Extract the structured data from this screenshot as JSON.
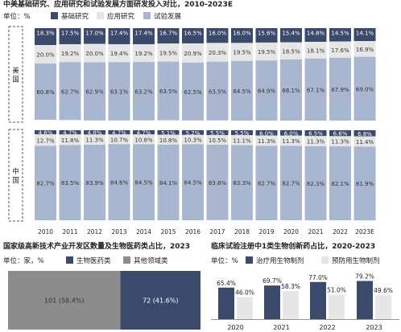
{
  "top_chart": {
    "title": "中美基础研究、应用研究和试验发展方面研发投入对比，2010-2023E",
    "unit": "单位：%",
    "legend": [
      "基础研究",
      "应用研究",
      "试验发展"
    ],
    "colors": {
      "basic": "#3b4a6b",
      "applied": "#e6e6e6",
      "experimental": "#a8b6cf"
    }
  },
  "bottom_left": {
    "title": "国家级高新技术产业开发区数量及生物医药类占比，2023",
    "unit": "单位：家，%",
    "legend": [
      "生物医药类",
      "其他领域类"
    ]
  },
  "bottom_right": {
    "title": "临床试验注册中1类生物创新药占比，2020-2023",
    "unit": "单位：%",
    "legend": [
      "治疗用生物制剂",
      "预防用生物制剂"
    ]
  },
  "chart_data": [
    {
      "type": "bar",
      "title": "中美基础研究、应用研究和试验发展方面研发投入对比，2010-2023E",
      "panel": "美国",
      "categories": [
        "2010",
        "2011",
        "2012",
        "2013",
        "2014",
        "2015",
        "2016",
        "2017",
        "2018",
        "2019",
        "2020",
        "2021",
        "2022",
        "2023E"
      ],
      "series": [
        {
          "name": "基础研究",
          "values": [
            18.3,
            17.5,
            17.0,
            17.4,
            17.4,
            16.7,
            16.5,
            16.0,
            16.0,
            15.6,
            15.4,
            14.8,
            14.5,
            14.1
          ]
        },
        {
          "name": "应用研究",
          "values": [
            20.0,
            19.2,
            20.0,
            19.4,
            19.2,
            19.5,
            20.9,
            20.3,
            19.5,
            19.5,
            18.5,
            18.1,
            17.6,
            16.9
          ]
        },
        {
          "name": "试验发展",
          "values": [
            60.8,
            62.7,
            62.9,
            63.1,
            63.2,
            63.5,
            62.5,
            63.5,
            64.5,
            64.9,
            66.1,
            67.1,
            67.9,
            69.0
          ]
        }
      ],
      "ylim": [
        0,
        100
      ]
    },
    {
      "type": "bar",
      "panel": "中国",
      "categories": [
        "2010",
        "2011",
        "2012",
        "2013",
        "2014",
        "2015",
        "2016",
        "2017",
        "2018",
        "2019",
        "2020",
        "2021",
        "2022",
        "2023E"
      ],
      "series": [
        {
          "name": "基础研究",
          "values": [
            4.6,
            4.7,
            4.8,
            4.7,
            4.7,
            5.1,
            5.2,
            5.5,
            5.5,
            6.0,
            6.0,
            6.5,
            6.6,
            6.8
          ]
        },
        {
          "name": "应用研究",
          "values": [
            12.7,
            11.8,
            11.3,
            10.7,
            10.8,
            10.8,
            10.3,
            10.5,
            11.1,
            11.3,
            11.3,
            11.3,
            11.3,
            11.4
          ]
        },
        {
          "name": "试验发展",
          "values": [
            82.7,
            83.5,
            83.9,
            84.6,
            84.5,
            84.1,
            84.5,
            83.8,
            83.3,
            82.7,
            82.7,
            82.3,
            82.1,
            81.9
          ]
        }
      ],
      "ylim": [
        0,
        100
      ]
    },
    {
      "type": "bar",
      "title": "国家级高新技术产业开发区数量及生物医药类占比，2023",
      "orientation": "horizontal-stacked",
      "segments": [
        {
          "name": "其他领域类",
          "value": 101,
          "label": "101 (58.4%)"
        },
        {
          "name": "生物医药类",
          "value": 72,
          "label": "72 (41.6%)"
        }
      ]
    },
    {
      "type": "bar",
      "title": "临床试验注册中1类生物创新药占比，2020-2023",
      "categories": [
        "2020",
        "2021",
        "2022",
        "2023"
      ],
      "series": [
        {
          "name": "治疗用生物制剂",
          "values": [
            65.4,
            69.7,
            77.0,
            79.2
          ]
        },
        {
          "name": "预防用生物制剂",
          "values": [
            46.0,
            58.3,
            51.0,
            49.6
          ]
        }
      ]
    }
  ]
}
